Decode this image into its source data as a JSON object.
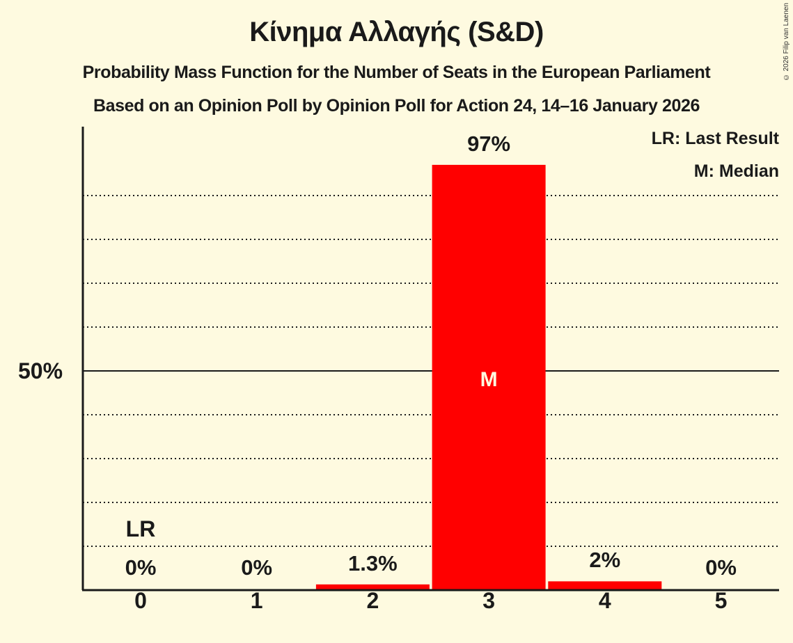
{
  "header": {
    "title": "Κίνημα Αλλαγής (S&D)",
    "subtitle1": "Probability Mass Function for the Number of Seats in the European Parliament",
    "subtitle2": "Based on an Opinion Poll by Opinion Poll for Action 24, 14–16 January 2026",
    "copyright": "© 2026 Filip van Laenen"
  },
  "legend": {
    "lr": "LR: Last Result",
    "m": "M: Median"
  },
  "axis": {
    "y_tick_label": "50%"
  },
  "markers": {
    "last_result": "LR",
    "median": "M"
  },
  "colors": {
    "background": "#fefae0",
    "bar": "#ff0000",
    "text": "#1a1a1a"
  },
  "chart_data": {
    "type": "bar",
    "title": "Κίνημα Αλλαγής (S&D)",
    "subtitle": "Probability Mass Function for the Number of Seats in the European Parliament",
    "xlabel": "",
    "ylabel": "",
    "categories": [
      "0",
      "1",
      "2",
      "3",
      "4",
      "5"
    ],
    "values": [
      0,
      0,
      1.3,
      97,
      2,
      0
    ],
    "value_labels": [
      "0%",
      "0%",
      "1.3%",
      "97%",
      "2%",
      "0%"
    ],
    "ylim": [
      0,
      105
    ],
    "y_ticks_labeled": [
      50
    ],
    "gridlines_every": 10,
    "last_result_category": "0",
    "median_category": "3",
    "legend": [
      "LR: Last Result",
      "M: Median"
    ],
    "legend_position": "top-right"
  }
}
